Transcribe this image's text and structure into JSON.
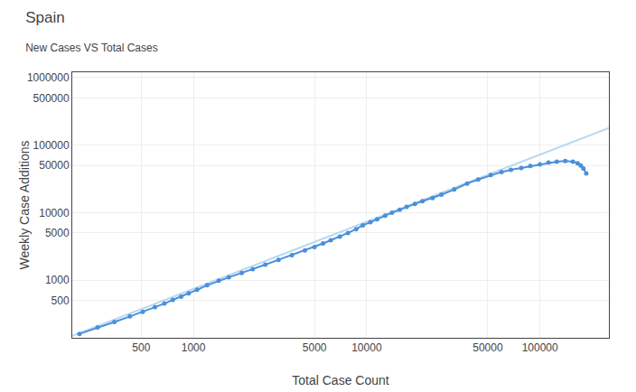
{
  "chart_data": {
    "type": "line",
    "title": "Spain",
    "subtitle": "New Cases VS Total Cases",
    "xlabel": "Total Case Count",
    "ylabel": "Weekly Case Additions",
    "log": true,
    "grid": true,
    "xlim": [
      200,
      250000
    ],
    "ylim": [
      140,
      1200000
    ],
    "xticks": [
      500,
      1000,
      5000,
      10000,
      50000,
      100000
    ],
    "yticks": [
      500,
      1000,
      5000,
      10000,
      50000,
      100000,
      500000,
      1000000
    ],
    "series": [
      {
        "color": "#b8d8f0",
        "marker": "none",
        "line_style": "solid",
        "x": [
          200,
          250000
        ],
        "values": [
          150,
          180000
        ]
      },
      {
        "color": "#4a90d9",
        "marker": "circle",
        "line_style": "solid",
        "x": [
          220,
          280,
          350,
          430,
          510,
          600,
          680,
          760,
          850,
          940,
          1050,
          1200,
          1400,
          1600,
          1900,
          2200,
          2600,
          3100,
          3700,
          4400,
          5000,
          5600,
          6200,
          7000,
          7800,
          8700,
          9500,
          10500,
          11500,
          12800,
          14000,
          15500,
          17000,
          19000,
          21000,
          24000,
          27000,
          32000,
          38000,
          44000,
          52000,
          60000,
          68000,
          78000,
          88000,
          100000,
          112000,
          125000,
          140000,
          155000,
          165000,
          172000,
          178000,
          185000
        ],
        "values": [
          160,
          200,
          240,
          290,
          340,
          400,
          450,
          510,
          570,
          640,
          720,
          840,
          980,
          1100,
          1280,
          1450,
          1700,
          2000,
          2350,
          2750,
          3100,
          3500,
          3900,
          4400,
          5000,
          5700,
          6500,
          7200,
          8000,
          9000,
          10000,
          11000,
          12200,
          13500,
          14800,
          16500,
          18500,
          22000,
          27000,
          31000,
          36000,
          40000,
          43000,
          46000,
          49000,
          52000,
          55000,
          57000,
          58000,
          57000,
          54000,
          50000,
          45000,
          38000
        ]
      }
    ]
  }
}
